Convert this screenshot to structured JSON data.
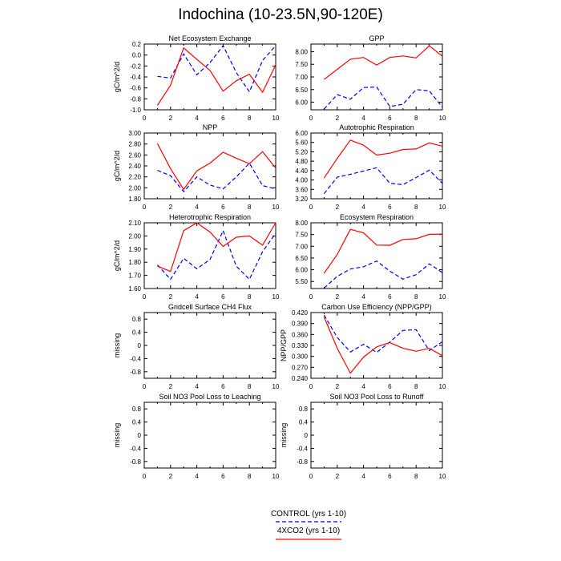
{
  "title": "Indochina (10-23.5N,90-120E)",
  "colors": {
    "control": "#0000ff",
    "xco2": "#ff0000",
    "axis": "#000000"
  },
  "legend": [
    {
      "label": "CONTROL (yrs 1-10)",
      "series": "control",
      "dash": true
    },
    {
      "label": "4XCO2 (yrs 1-10)",
      "series": "xco2",
      "dash": false
    }
  ],
  "chart_data": [
    {
      "type": "line",
      "title": "Net Ecosystem Exchange",
      "ylabel": "gC/m^2/d",
      "x": [
        1,
        2,
        3,
        4,
        5,
        6,
        7,
        8,
        9,
        10
      ],
      "xlim": [
        0,
        10
      ],
      "xticks": [
        "0",
        "2",
        "4",
        "6",
        "8",
        "10"
      ],
      "ylim": [
        -1.0,
        0.2
      ],
      "yticks": [
        "-1.0",
        "-0.8",
        "-0.6",
        "-0.4",
        "-0.2",
        "0.0",
        "0.2"
      ],
      "series": [
        {
          "name": "CONTROL (yrs 1-10)",
          "key": "control",
          "values": [
            -0.39,
            -0.42,
            0.02,
            -0.36,
            -0.14,
            0.17,
            -0.32,
            -0.67,
            -0.1,
            0.17
          ]
        },
        {
          "name": "4XCO2 (yrs 1-10)",
          "key": "xco2",
          "values": [
            -0.92,
            -0.55,
            0.13,
            -0.08,
            -0.28,
            -0.66,
            -0.47,
            -0.35,
            -0.68,
            -0.18
          ]
        }
      ]
    },
    {
      "type": "line",
      "title": "GPP",
      "ylabel": "",
      "x": [
        1,
        2,
        3,
        4,
        5,
        6,
        7,
        8,
        9,
        10
      ],
      "xlim": [
        0,
        10
      ],
      "xticks": [
        "0",
        "2",
        "4",
        "6",
        "8",
        "10"
      ],
      "ylim": [
        5.7,
        8.3
      ],
      "yticks": [
        "6.00",
        "6.50",
        "7.00",
        "7.50",
        "8.00"
      ],
      "series": [
        {
          "name": "CONTROL (yrs 1-10)",
          "key": "control",
          "values": [
            5.73,
            6.3,
            6.12,
            6.58,
            6.6,
            5.83,
            5.92,
            6.5,
            6.45,
            5.8
          ]
        },
        {
          "name": "4XCO2 (yrs 1-10)",
          "key": "xco2",
          "values": [
            6.9,
            7.3,
            7.7,
            7.77,
            7.47,
            7.77,
            7.83,
            7.75,
            8.23,
            7.82
          ]
        }
      ]
    },
    {
      "type": "line",
      "title": "NPP",
      "ylabel": "gC/m^2/d",
      "x": [
        1,
        2,
        3,
        4,
        5,
        6,
        7,
        8,
        9,
        10
      ],
      "xlim": [
        0,
        10
      ],
      "xticks": [
        "0",
        "2",
        "4",
        "6",
        "8",
        "10"
      ],
      "ylim": [
        1.8,
        3.0
      ],
      "yticks": [
        "1.80",
        "2.00",
        "2.20",
        "2.40",
        "2.60",
        "2.80",
        "3.00"
      ],
      "series": [
        {
          "name": "CONTROL (yrs 1-10)",
          "key": "control",
          "values": [
            2.32,
            2.22,
            1.93,
            2.2,
            2.05,
            1.98,
            2.2,
            2.45,
            2.04,
            1.98
          ]
        },
        {
          "name": "4XCO2 (yrs 1-10)",
          "key": "xco2",
          "values": [
            2.81,
            2.35,
            1.97,
            2.31,
            2.45,
            2.65,
            2.54,
            2.44,
            2.66,
            2.36
          ]
        }
      ]
    },
    {
      "type": "line",
      "title": "Autotrophic Respiration",
      "ylabel": "",
      "x": [
        1,
        2,
        3,
        4,
        5,
        6,
        7,
        8,
        9,
        10
      ],
      "xlim": [
        0,
        10
      ],
      "xticks": [
        "0",
        "2",
        "4",
        "6",
        "8",
        "10"
      ],
      "ylim": [
        3.2,
        6.0
      ],
      "yticks": [
        "3.20",
        "3.60",
        "4.00",
        "4.40",
        "4.80",
        "5.20",
        "5.60",
        "6.00"
      ],
      "series": [
        {
          "name": "CONTROL (yrs 1-10)",
          "key": "control",
          "values": [
            3.42,
            4.12,
            4.24,
            4.38,
            4.52,
            3.86,
            3.8,
            4.1,
            4.42,
            3.86
          ]
        },
        {
          "name": "4XCO2 (yrs 1-10)",
          "key": "xco2",
          "values": [
            4.08,
            4.92,
            5.7,
            5.48,
            5.06,
            5.14,
            5.3,
            5.32,
            5.58,
            5.44
          ]
        }
      ]
    },
    {
      "type": "line",
      "title": "Heterotrophic Respiration",
      "ylabel": "gC/m^2/d",
      "x": [
        1,
        2,
        3,
        4,
        5,
        6,
        7,
        8,
        9,
        10
      ],
      "xlim": [
        0,
        10
      ],
      "xticks": [
        "0",
        "2",
        "4",
        "6",
        "8",
        "10"
      ],
      "ylim": [
        1.6,
        2.1
      ],
      "yticks": [
        "1.60",
        "1.70",
        "1.80",
        "1.90",
        "2.00",
        "2.10"
      ],
      "series": [
        {
          "name": "CONTROL (yrs 1-10)",
          "key": "control",
          "values": [
            1.78,
            1.67,
            1.83,
            1.75,
            1.82,
            2.04,
            1.77,
            1.67,
            1.88,
            2.02
          ]
        },
        {
          "name": "4XCO2 (yrs 1-10)",
          "key": "xco2",
          "values": [
            1.77,
            1.73,
            2.04,
            2.1,
            2.03,
            1.92,
            1.99,
            2.0,
            1.93,
            2.1
          ]
        }
      ]
    },
    {
      "type": "line",
      "title": "Ecosystem Respiration",
      "ylabel": "",
      "x": [
        1,
        2,
        3,
        4,
        5,
        6,
        7,
        8,
        9,
        10
      ],
      "xlim": [
        0,
        10
      ],
      "xticks": [
        "0",
        "2",
        "4",
        "6",
        "8",
        "10"
      ],
      "ylim": [
        5.2,
        8.0
      ],
      "yticks": [
        "5.50",
        "6.00",
        "6.50",
        "7.00",
        "7.50",
        "8.00"
      ],
      "series": [
        {
          "name": "CONTROL (yrs 1-10)",
          "key": "control",
          "values": [
            5.22,
            5.72,
            6.03,
            6.13,
            6.37,
            5.94,
            5.6,
            5.79,
            6.25,
            5.88
          ]
        },
        {
          "name": "4XCO2 (yrs 1-10)",
          "key": "xco2",
          "values": [
            5.85,
            6.65,
            7.72,
            7.57,
            7.05,
            7.04,
            7.29,
            7.32,
            7.51,
            7.52
          ]
        }
      ]
    },
    {
      "type": "line",
      "title": "Gridcell Surface CH4 Flux",
      "ylabel": "missing",
      "x": [],
      "xlim": [
        0,
        10
      ],
      "xticks": [
        "0",
        "2",
        "4",
        "6",
        "8",
        "10"
      ],
      "ylim": [
        -1.0,
        1.0
      ],
      "yticks": [
        "-0.8",
        "-0.4",
        "0",
        "0.4",
        "0.8"
      ],
      "series": []
    },
    {
      "type": "line",
      "title": "Carbon Use Efficiency (NPP/GPP)",
      "ylabel": "NPP/GPP",
      "x": [
        1,
        2,
        3,
        4,
        5,
        6,
        7,
        8,
        9,
        10
      ],
      "xlim": [
        0,
        10
      ],
      "xticks": [
        "0",
        "2",
        "4",
        "6",
        "8",
        "10"
      ],
      "ylim": [
        0.24,
        0.42
      ],
      "yticks": [
        "0.240",
        "0.270",
        "0.300",
        "0.330",
        "0.360",
        "0.390",
        "0.420"
      ],
      "series": [
        {
          "name": "CONTROL (yrs 1-10)",
          "key": "control",
          "values": [
            0.413,
            0.352,
            0.312,
            0.333,
            0.311,
            0.339,
            0.371,
            0.373,
            0.316,
            0.34
          ]
        },
        {
          "name": "4XCO2 (yrs 1-10)",
          "key": "xco2",
          "values": [
            0.408,
            0.322,
            0.254,
            0.298,
            0.326,
            0.338,
            0.322,
            0.314,
            0.322,
            0.302
          ]
        }
      ]
    },
    {
      "type": "line",
      "title": "Soil NO3 Pool Loss to Leaching",
      "ylabel": "missing",
      "x": [],
      "xlim": [
        0,
        10
      ],
      "xticks": [
        "0",
        "2",
        "4",
        "6",
        "8",
        "10"
      ],
      "ylim": [
        -1.0,
        1.0
      ],
      "yticks": [
        "-0.8",
        "-0.4",
        "0",
        "0.4",
        "0.8"
      ],
      "series": []
    },
    {
      "type": "line",
      "title": "Soil NO3 Pool Loss to Runoff",
      "ylabel": "missing",
      "x": [],
      "xlim": [
        0,
        10
      ],
      "xticks": [
        "0",
        "2",
        "4",
        "6",
        "8",
        "10"
      ],
      "ylim": [
        -1.0,
        1.0
      ],
      "yticks": [
        "-0.8",
        "-0.4",
        "0",
        "0.4",
        "0.8"
      ],
      "series": []
    }
  ]
}
